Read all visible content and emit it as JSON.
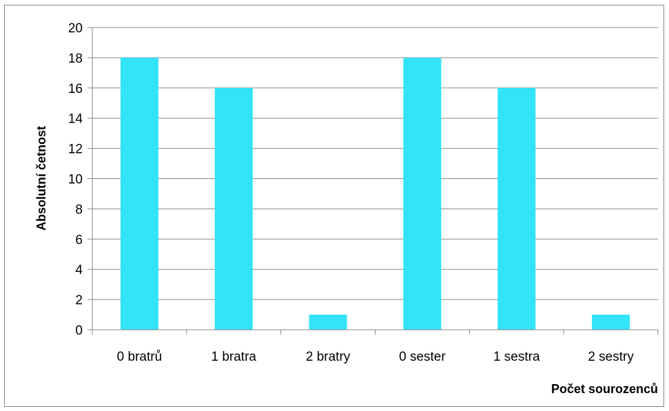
{
  "chart_data": {
    "type": "bar",
    "categories": [
      "0 bratrů",
      "1 bratra",
      "2 bratry",
      "0 sester",
      "1 sestra",
      "2 sestry"
    ],
    "values": [
      18,
      16,
      1,
      18,
      16,
      1
    ],
    "title": "",
    "xlabel": "Počet sourozenců",
    "ylabel": "Absolutní četnost",
    "ylim": [
      0,
      20
    ],
    "yticks": [
      "0",
      "2",
      "4",
      "6",
      "8",
      "10",
      "12",
      "14",
      "16",
      "18",
      "20"
    ],
    "grid": true,
    "legend": "none",
    "bar_color": "#33E3F8",
    "grid_color": "#878787"
  }
}
